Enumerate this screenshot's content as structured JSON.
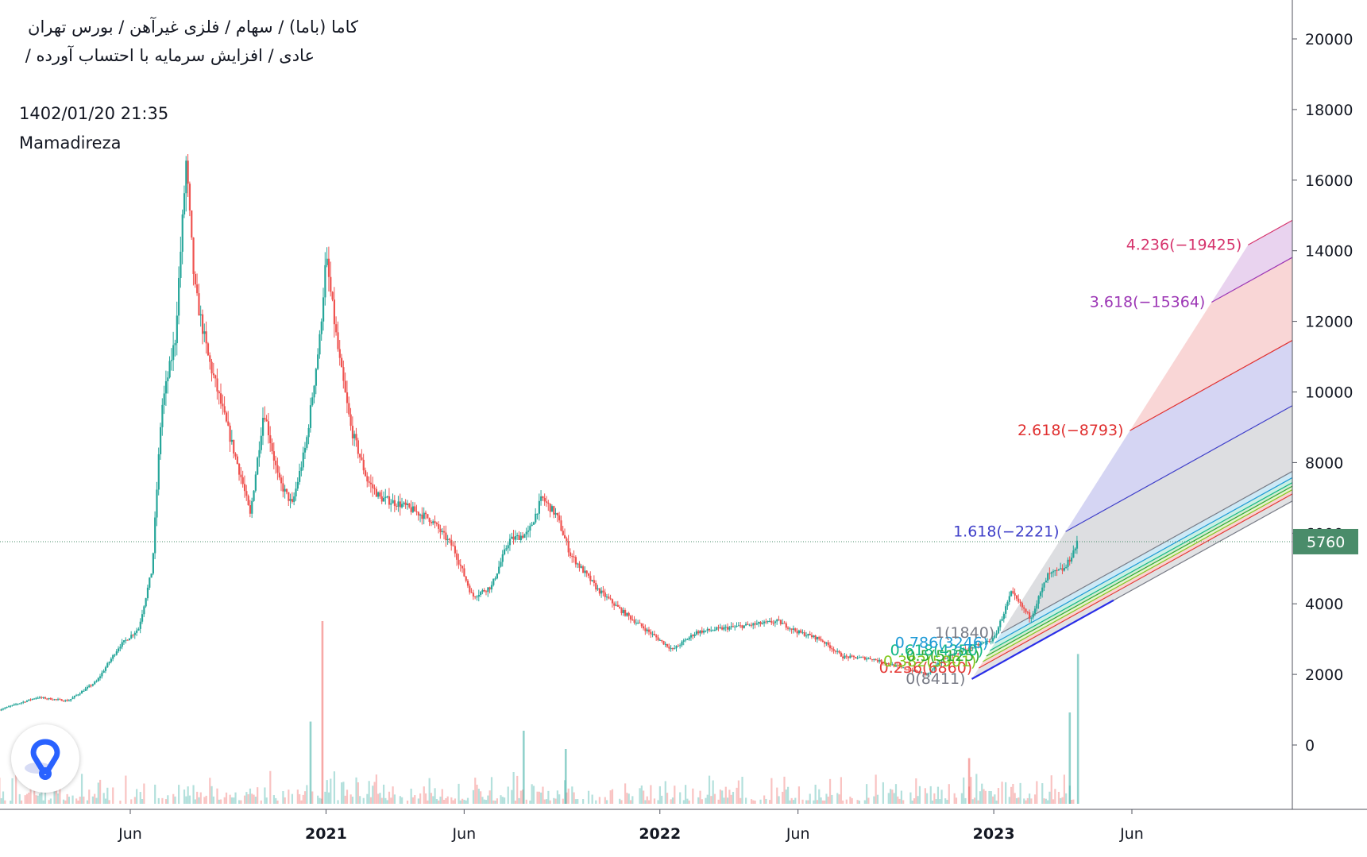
{
  "header": {
    "line1": "کاما (باما) / سهام / فلزی غیرآهن / بورس تهران",
    "line2": "عادی / افزایش سرمایه با احتساب آورده /",
    "timestamp": "1402/01/20 21:35",
    "author": "Mamadireza"
  },
  "colors": {
    "up": "#26a69a",
    "down": "#ef5350",
    "price_label_bg": "#4a8c6a",
    "axis_text": "#131722",
    "logo": "#2962ff"
  },
  "chart_data": {
    "type": "candlestick",
    "y_axis": {
      "ticks": [
        0,
        2000,
        4000,
        6000,
        8000,
        10000,
        12000,
        14000,
        16000,
        18000,
        20000
      ],
      "tick_labels": [
        "0",
        "2000",
        "4000",
        "6000",
        "8000",
        "10000",
        "12000",
        "14000",
        "16000",
        "18000",
        "20000"
      ],
      "position": "right"
    },
    "x_axis": {
      "labels": [
        "Jun",
        "2021",
        "Jun",
        "2022",
        "Jun",
        "2023",
        "Jun"
      ],
      "bold": [
        false,
        true,
        false,
        true,
        false,
        true,
        false
      ],
      "label_dates": [
        "2020-06-01",
        "2021-01-01",
        "2021-06-01",
        "2022-01-01",
        "2022-06-01",
        "2023-01-01",
        "2023-06-01"
      ]
    },
    "last_price": {
      "value": 5760,
      "label": "5760"
    },
    "price_path": [
      [
        "2020-01-10",
        1000
      ],
      [
        "2020-02-20",
        1350
      ],
      [
        "2020-03-25",
        1250
      ],
      [
        "2020-04-25",
        1800
      ],
      [
        "2020-05-20",
        2800
      ],
      [
        "2020-06-10",
        3300
      ],
      [
        "2020-06-25",
        5000
      ],
      [
        "2020-07-05",
        9500
      ],
      [
        "2020-07-20",
        11500
      ],
      [
        "2020-08-01",
        16500
      ],
      [
        "2020-08-10",
        13000
      ],
      [
        "2020-08-25",
        11000
      ],
      [
        "2020-09-15",
        9000
      ],
      [
        "2020-10-01",
        7500
      ],
      [
        "2020-10-10",
        6500
      ],
      [
        "2020-10-25",
        9500
      ],
      [
        "2020-11-10",
        7500
      ],
      [
        "2020-11-25",
        6800
      ],
      [
        "2020-12-10",
        8500
      ],
      [
        "2020-12-25",
        11500
      ],
      [
        "2021-01-01",
        13800
      ],
      [
        "2021-01-15",
        11000
      ],
      [
        "2021-01-28",
        9000
      ],
      [
        "2021-02-15",
        7500
      ],
      [
        "2021-03-01",
        7000
      ],
      [
        "2021-03-25",
        6800
      ],
      [
        "2021-04-25",
        6400
      ],
      [
        "2021-05-20",
        5600
      ],
      [
        "2021-06-10",
        4200
      ],
      [
        "2021-07-01",
        4500
      ],
      [
        "2021-07-20",
        5800
      ],
      [
        "2021-08-10",
        6000
      ],
      [
        "2021-08-25",
        7000
      ],
      [
        "2021-09-10",
        6500
      ],
      [
        "2021-09-25",
        5400
      ],
      [
        "2021-10-25",
        4400
      ],
      [
        "2021-11-20",
        3800
      ],
      [
        "2021-12-20",
        3200
      ],
      [
        "2022-01-15",
        2700
      ],
      [
        "2022-02-10",
        3200
      ],
      [
        "2022-03-10",
        3300
      ],
      [
        "2022-04-10",
        3400
      ],
      [
        "2022-05-10",
        3500
      ],
      [
        "2022-06-01",
        3200
      ],
      [
        "2022-06-25",
        3000
      ],
      [
        "2022-07-20",
        2500
      ],
      [
        "2022-08-20",
        2450
      ],
      [
        "2022-09-20",
        2200
      ],
      [
        "2022-10-20",
        2000
      ],
      [
        "2022-11-10",
        2500
      ],
      [
        "2022-12-01",
        2700
      ],
      [
        "2023-01-01",
        3000
      ],
      [
        "2023-01-20",
        4300
      ],
      [
        "2023-02-10",
        3600
      ],
      [
        "2023-03-01",
        4800
      ],
      [
        "2023-03-20",
        5000
      ],
      [
        "2023-04-03",
        5760
      ]
    ],
    "volume_spikes": [
      {
        "date": "2020-12-15",
        "value": 0.45,
        "color": "up"
      },
      {
        "date": "2020-12-28",
        "value": 1.0,
        "color": "down"
      },
      {
        "date": "2021-08-05",
        "value": 0.4,
        "color": "up"
      },
      {
        "date": "2021-09-20",
        "value": 0.3,
        "color": "up"
      },
      {
        "date": "2022-12-05",
        "value": 0.25,
        "color": "down"
      },
      {
        "date": "2023-03-25",
        "value": 0.5,
        "color": "up"
      },
      {
        "date": "2023-04-03",
        "value": 0.82,
        "color": "up"
      }
    ],
    "fib_channel": {
      "base_line": {
        "start": [
          "2022-12-08",
          1870
        ],
        "end": [
          "2023-05-12",
          4100
        ],
        "color": "#2a2ee8"
      },
      "levels": [
        {
          "ratio": 0,
          "label": "0(8411)",
          "color": "#787b86",
          "offset": 0
        },
        {
          "ratio": 0.236,
          "label": "0.236(6860)",
          "color": "#e53935",
          "offset": 200
        },
        {
          "ratio": 0.382,
          "label": "0.382(5901)",
          "color": "#82c91e",
          "offset": 320
        },
        {
          "ratio": 0.5,
          "label": "0.5(5125)",
          "color": "#2fa832",
          "offset": 420
        },
        {
          "ratio": 0.618,
          "label": "0.618(4350)",
          "color": "#12b886",
          "offset": 520
        },
        {
          "ratio": 0.786,
          "label": "0.786(3246)",
          "color": "#1d9ad6",
          "offset": 660
        },
        {
          "ratio": 1,
          "label": "1(1840)",
          "color": "#787b86",
          "offset": 840
        },
        {
          "ratio": 1.618,
          "label": "1.618(−2221)",
          "color": "#3f3fc9",
          "offset": 2700
        },
        {
          "ratio": 2.618,
          "label": "2.618(−8793)",
          "color": "#e03131",
          "offset": 4550
        },
        {
          "ratio": 3.618,
          "label": "3.618(−15364)",
          "color": "#9c36b5",
          "offset": 6900
        },
        {
          "ratio": 4.236,
          "label": "4.236(−19425)",
          "color": "#d6336c",
          "offset": 7950
        }
      ],
      "fill_colors": [
        "rgba(120,123,134,0.22)",
        "rgba(229,57,53,0.22)",
        "rgba(130,201,30,0.22)",
        "rgba(47,168,50,0.22)",
        "rgba(18,184,134,0.22)",
        "rgba(29,154,214,0.22)",
        "rgba(120,123,134,0.25)",
        "rgba(63,63,201,0.22)",
        "rgba(224,49,49,0.20)",
        "rgba(156,54,181,0.22)"
      ]
    }
  }
}
